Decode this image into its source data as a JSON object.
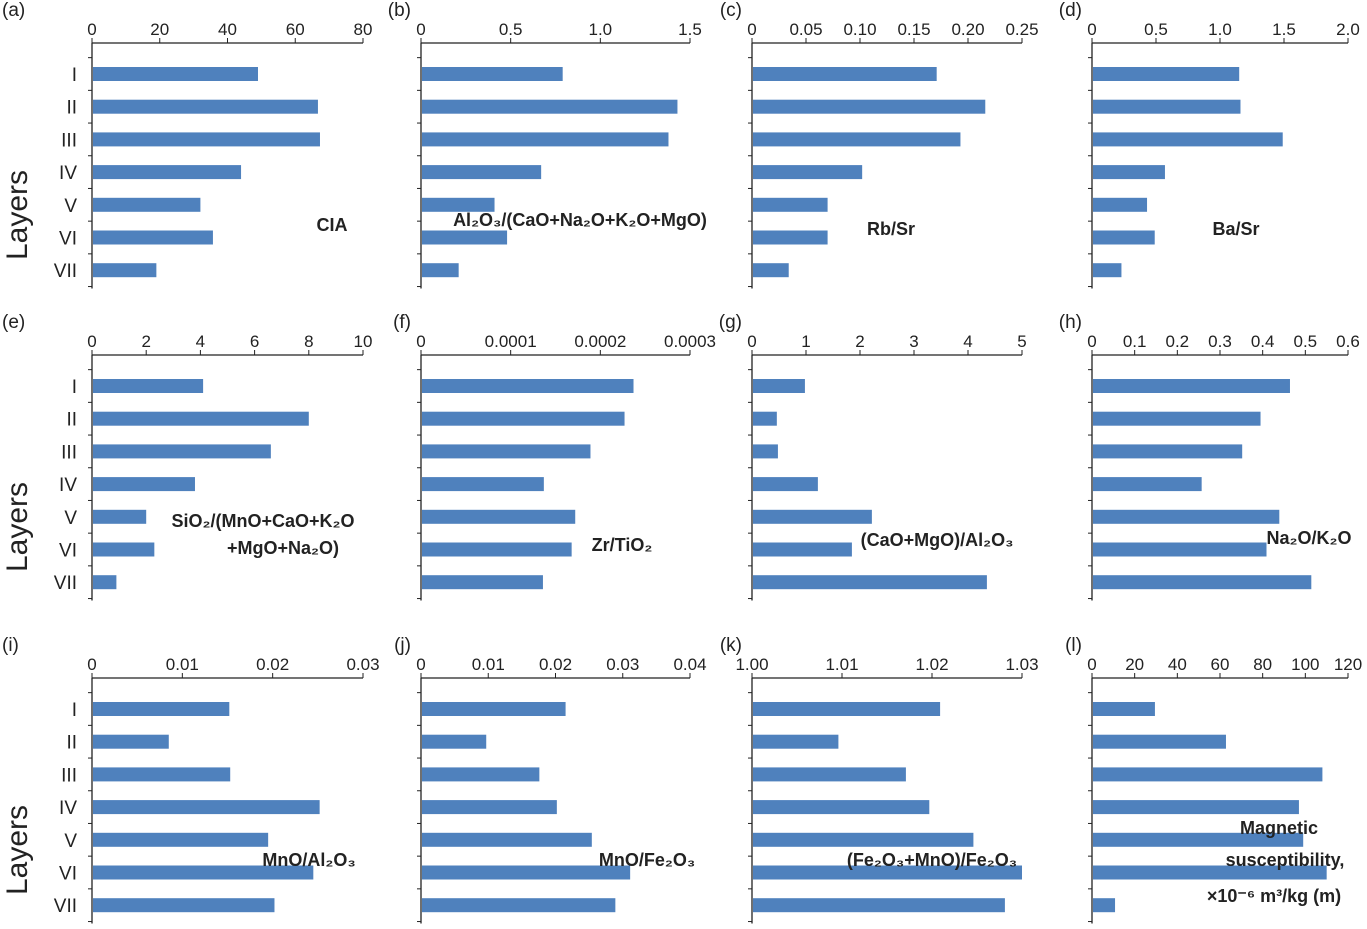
{
  "chart_data": [
    {
      "type": "bar",
      "orientation": "horizontal",
      "panel": "(a)",
      "title": [
        "CIA"
      ],
      "ylabel": "Layers",
      "categories": [
        "I",
        "II",
        "III",
        "IV",
        "V",
        "VI",
        "VII"
      ],
      "values": [
        49,
        66.7,
        67.3,
        44,
        32,
        35.7,
        19
      ],
      "xlim": [
        0,
        80
      ],
      "ticks": [
        "0",
        "20",
        "40",
        "60",
        "80"
      ]
    },
    {
      "type": "bar",
      "orientation": "horizontal",
      "panel": "(b)",
      "title": [
        "Al₂O₃/(CaO+Na₂O+K₂O+MgO)"
      ],
      "categories": [
        "I",
        "II",
        "III",
        "IV",
        "V",
        "VI",
        "VII"
      ],
      "values": [
        0.79,
        1.43,
        1.38,
        0.67,
        0.41,
        0.48,
        0.21
      ],
      "xlim": [
        0,
        1.5
      ],
      "ticks": [
        "0",
        "0.5",
        "1.0",
        "1.5"
      ]
    },
    {
      "type": "bar",
      "orientation": "horizontal",
      "panel": "(c)",
      "title": [
        "Rb/Sr"
      ],
      "categories": [
        "I",
        "II",
        "III",
        "IV",
        "V",
        "VI",
        "VII"
      ],
      "values": [
        0.171,
        0.216,
        0.193,
        0.102,
        0.07,
        0.07,
        0.034
      ],
      "xlim": [
        0,
        0.25
      ],
      "ticks": [
        "0",
        "0.05",
        "0.10",
        "0.15",
        "0.20",
        "0.25"
      ]
    },
    {
      "type": "bar",
      "orientation": "horizontal",
      "panel": "(d)",
      "title": [
        "Ba/Sr"
      ],
      "categories": [
        "I",
        "II",
        "III",
        "IV",
        "V",
        "VI",
        "VII"
      ],
      "values": [
        1.15,
        1.16,
        1.49,
        0.57,
        0.43,
        0.49,
        0.23
      ],
      "xlim": [
        0,
        2.0
      ],
      "ticks": [
        "0",
        "0.5",
        "1.0",
        "1.5",
        "2.0"
      ]
    },
    {
      "type": "bar",
      "orientation": "horizontal",
      "panel": "(e)",
      "title": [
        "SiO₂/(MnO+CaO+K₂O",
        "+MgO+Na₂O)"
      ],
      "ylabel": "Layers",
      "categories": [
        "I",
        "II",
        "III",
        "IV",
        "V",
        "VI",
        "VII"
      ],
      "values": [
        4.1,
        8.0,
        6.6,
        3.8,
        2.0,
        2.3,
        0.9
      ],
      "xlim": [
        0,
        10
      ],
      "ticks": [
        "0",
        "2",
        "4",
        "6",
        "8",
        "10"
      ]
    },
    {
      "type": "bar",
      "orientation": "horizontal",
      "panel": "(f)",
      "title": [
        "Zr/TiO₂"
      ],
      "categories": [
        "I",
        "II",
        "III",
        "IV",
        "V",
        "VI",
        "VII"
      ],
      "values": [
        0.000237,
        0.000227,
        0.000189,
        0.000137,
        0.000172,
        0.000168,
        0.000136
      ],
      "xlim": [
        0,
        0.0003
      ],
      "ticks": [
        "0",
        "0.0001",
        "0.0002",
        "0.0003"
      ]
    },
    {
      "type": "bar",
      "orientation": "horizontal",
      "panel": "(g)",
      "title": [
        "(CaO+MgO)/Al₂O₃"
      ],
      "categories": [
        "I",
        "II",
        "III",
        "IV",
        "V",
        "VI",
        "VII"
      ],
      "values": [
        0.98,
        0.46,
        0.48,
        1.22,
        2.22,
        1.85,
        4.35
      ],
      "xlim": [
        0,
        5
      ],
      "ticks": [
        "0",
        "1",
        "2",
        "3",
        "4",
        "5"
      ]
    },
    {
      "type": "bar",
      "orientation": "horizontal",
      "panel": "(h)",
      "title": [
        "Na₂O/K₂O"
      ],
      "categories": [
        "I",
        "II",
        "III",
        "IV",
        "V",
        "VI",
        "VII"
      ],
      "values": [
        0.464,
        0.395,
        0.352,
        0.257,
        0.439,
        0.409,
        0.514
      ],
      "xlim": [
        0,
        0.6
      ],
      "ticks": [
        "0",
        "0.1",
        "0.2",
        "0.3",
        "0.4",
        "0.5",
        "0.6"
      ]
    },
    {
      "type": "bar",
      "orientation": "horizontal",
      "panel": "(i)",
      "title": [
        "MnO/Al₂O₃"
      ],
      "ylabel": "Layers",
      "categories": [
        "I",
        "II",
        "III",
        "IV",
        "V",
        "VI",
        "VII"
      ],
      "values": [
        0.0152,
        0.0085,
        0.0153,
        0.0252,
        0.0195,
        0.0245,
        0.0202
      ],
      "xlim": [
        0,
        0.03
      ],
      "ticks": [
        "0",
        "0.01",
        "0.02",
        "0.03"
      ]
    },
    {
      "type": "bar",
      "orientation": "horizontal",
      "panel": "(j)",
      "title": [
        "MnO/Fe₂O₃"
      ],
      "categories": [
        "I",
        "II",
        "III",
        "IV",
        "V",
        "VI",
        "VII"
      ],
      "values": [
        0.0215,
        0.0097,
        0.0176,
        0.0202,
        0.0254,
        0.0311,
        0.0289
      ],
      "xlim": [
        0,
        0.04
      ],
      "ticks": [
        "0",
        "0.01",
        "0.02",
        "0.03",
        "0.04"
      ]
    },
    {
      "type": "bar",
      "orientation": "horizontal",
      "panel": "(k)",
      "title": [
        "(Fe₂O₃+MnO)/Fe₂O₃"
      ],
      "categories": [
        "I",
        "II",
        "III",
        "IV",
        "V",
        "VI",
        "VII"
      ],
      "values": [
        1.0209,
        1.0096,
        1.0171,
        1.0197,
        1.0246,
        1.03,
        1.0281
      ],
      "xlim": [
        1.0,
        1.03
      ],
      "ticks": [
        "1.00",
        "1.01",
        "1.02",
        "1.03"
      ]
    },
    {
      "type": "bar",
      "orientation": "horizontal",
      "panel": "(l)",
      "title": [
        "Magnetic",
        "susceptibility,",
        "×10⁻⁶ m³/kg (m)"
      ],
      "categories": [
        "I",
        "II",
        "III",
        "IV",
        "V",
        "VI",
        "VII"
      ],
      "values": [
        29.5,
        62.8,
        108,
        97,
        99,
        110,
        10.8
      ],
      "xlim": [
        0,
        120
      ],
      "ticks": [
        "0",
        "20",
        "40",
        "60",
        "80",
        "100",
        "120"
      ]
    }
  ],
  "colors": {
    "bar": "#4f81bd",
    "axis": "#222222"
  }
}
